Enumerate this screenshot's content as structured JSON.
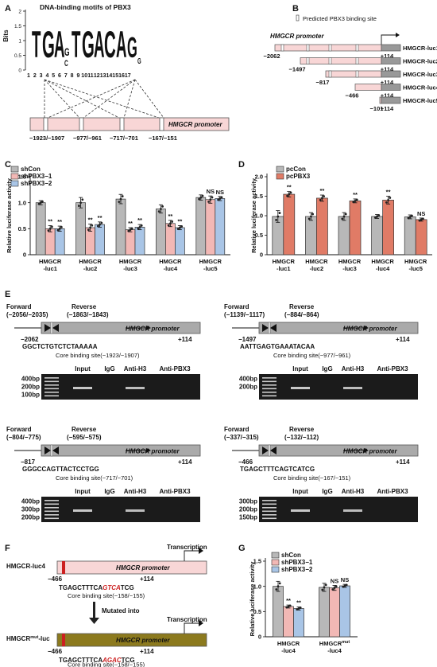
{
  "panel_a": {
    "letter": "A",
    "title": "DNA-binding motifs of PBX3",
    "ylabel": "Bits",
    "yticks": [
      "0",
      "0.5",
      "1",
      "1.5",
      "2"
    ],
    "positions": [
      "1",
      "2",
      "3",
      "4",
      "5",
      "6",
      "7",
      "8",
      "9",
      "10",
      "11",
      "12",
      "13",
      "14",
      "15",
      "16",
      "17"
    ],
    "promoter_label": "HMGCR promoter",
    "site_labels": [
      "−1923/−1907",
      "−977/−961",
      "−717/−701",
      "−167/−151"
    ]
  },
  "panel_b": {
    "letter": "B",
    "legend": "Predicted PBX3 binding site",
    "promoter_label": "HMGCR promoter",
    "constructs": [
      {
        "name": "HMGCR-luc1",
        "start": "−2062",
        "end": "+114"
      },
      {
        "name": "HMGCR-luc2",
        "start": "−1497",
        "end": "+114"
      },
      {
        "name": "HMGCR-luc3",
        "start": "−817",
        "end": "+114"
      },
      {
        "name": "HMGCR-luc4",
        "start": "−466",
        "end": "+114"
      },
      {
        "name": "HMGCR-luc5",
        "start": "−101",
        "end": "+114"
      }
    ]
  },
  "chart_data": [
    {
      "panel": "C",
      "type": "bar",
      "ylabel": "Relative luciferase activity",
      "ylim": [
        0,
        1.5
      ],
      "yticks": [
        "0",
        "0.5",
        "1.0",
        "1.5"
      ],
      "categories": [
        "HMGCR-luc1",
        "HMGCR-luc2",
        "HMGCR-luc3",
        "HMGCR-luc4",
        "HMGCR-luc5"
      ],
      "series": [
        {
          "name": "shCon",
          "color": "#b8b8b8",
          "values": [
            1.0,
            1.0,
            1.07,
            0.88,
            1.1
          ],
          "errors": [
            0.04,
            0.1,
            0.09,
            0.08,
            0.05
          ]
        },
        {
          "name": "shPBX3−1",
          "color": "#f2b8b5",
          "values": [
            0.5,
            0.52,
            0.48,
            0.6,
            1.06
          ],
          "errors": [
            0.06,
            0.07,
            0.04,
            0.06,
            0.07
          ]
        },
        {
          "name": "shPBX3−2",
          "color": "#a9c5e6",
          "values": [
            0.5,
            0.58,
            0.53,
            0.52,
            1.08
          ],
          "errors": [
            0.05,
            0.05,
            0.05,
            0.04,
            0.04
          ]
        }
      ],
      "annotations": [
        [
          "",
          "**",
          "**"
        ],
        [
          "",
          "**",
          "**"
        ],
        [
          "",
          "**",
          "**"
        ],
        [
          "",
          "**",
          "**"
        ],
        [
          "",
          "NS",
          "NS"
        ]
      ],
      "legend_placement": "top-left"
    },
    {
      "panel": "D",
      "type": "bar",
      "ylabel": "Relative luciferase activity",
      "ylim": [
        0,
        2.0
      ],
      "yticks": [
        "0",
        "0.5",
        "1.0",
        "1.5",
        "2.0"
      ],
      "categories": [
        "HMGCR-luc1",
        "HMGCR-luc2",
        "HMGCR-luc3",
        "HMGCR-luc4",
        "HMGCR-luc5"
      ],
      "series": [
        {
          "name": "pcCon",
          "color": "#b8b8b8",
          "values": [
            0.98,
            0.98,
            0.98,
            0.98,
            0.97
          ],
          "errors": [
            0.15,
            0.1,
            0.1,
            0.05,
            0.05
          ]
        },
        {
          "name": "pcPBX3",
          "color": "#e07b66",
          "values": [
            1.55,
            1.45,
            1.38,
            1.4,
            0.9
          ],
          "errors": [
            0.07,
            0.08,
            0.05,
            0.1,
            0.04
          ]
        }
      ],
      "annotations": [
        [
          "",
          "**"
        ],
        [
          "",
          "**"
        ],
        [
          "",
          "**"
        ],
        [
          "",
          "**"
        ],
        [
          "",
          "NS"
        ]
      ],
      "legend_placement": "top-left"
    },
    {
      "panel": "G",
      "type": "bar",
      "ylabel": "Relative luciferase activity",
      "ylim": [
        0,
        1.5
      ],
      "yticks": [
        "0",
        "0.5",
        "1.0",
        "1.5"
      ],
      "categories": [
        "HMGCR-luc4",
        "HMGCR-mut-luc4"
      ],
      "series": [
        {
          "name": "shCon",
          "color": "#b8b8b8",
          "values": [
            1.0,
            0.98
          ],
          "errors": [
            0.1,
            0.08
          ]
        },
        {
          "name": "shPBX3−1",
          "color": "#f2b8b5",
          "values": [
            0.6,
            0.97
          ],
          "errors": [
            0.03,
            0.05
          ]
        },
        {
          "name": "shPBX3−2",
          "color": "#a9c5e6",
          "values": [
            0.56,
            1.01
          ],
          "errors": [
            0.03,
            0.03
          ]
        }
      ],
      "annotations": [
        [
          "",
          "**",
          "**"
        ],
        [
          "",
          "NS",
          "NS"
        ]
      ],
      "legend_placement": "top-left"
    }
  ],
  "panel_e": {
    "letter": "E",
    "subpanels": [
      {
        "fwd": "Forward",
        "fwd_pos": "(−2056/−2035)",
        "rev": "Reverse",
        "rev_pos": "(−1863/−1843)",
        "start": "−2062",
        "end": "+114",
        "seq": "GGCTCTGTCTCTAAAAA",
        "core": "Core binding site(−1923/−1907)",
        "ladder": [
          "400bp",
          "200bp",
          "100bp"
        ],
        "lanes": [
          "Input",
          "IgG",
          "Anti-H3",
          "Anti-PBX3"
        ],
        "promoter": "HMGCR promoter"
      },
      {
        "fwd": "Forward",
        "fwd_pos": "(−1139/−1117)",
        "rev": "Reverse",
        "rev_pos": "(−884/−864)",
        "start": "−1497",
        "end": "+114",
        "seq": "AATTGAGTGAAATACAA",
        "core": "Core binding site(−977/−961)",
        "ladder": [
          "400bp",
          "200bp"
        ],
        "lanes": [
          "Input",
          "IgG",
          "Anti-H3",
          "Anti-PBX3"
        ],
        "promoter": "HMGCR promoter"
      },
      {
        "fwd": "Forward",
        "fwd_pos": "(−804/−775)",
        "rev": "Reverse",
        "rev_pos": "(−595/−575)",
        "start": "−817",
        "end": "+114",
        "seq": "GGGCCAGTTACTCCTGG",
        "core": "Core binding site(−717/−701)",
        "ladder": [
          "400bp",
          "300bp",
          "200bp"
        ],
        "lanes": [
          "Input",
          "IgG",
          "Anti-H3",
          "Anti-PBX3"
        ],
        "promoter": "HMGCR promoter"
      },
      {
        "fwd": "Forward",
        "fwd_pos": "(−337/−315)",
        "rev": "Reverse",
        "rev_pos": "(−132/−112)",
        "start": "−466",
        "end": "+114",
        "seq": "TGAGCTTTCAGTCATCG",
        "core": "Core binding site(−167/−151)",
        "ladder": [
          "300bp",
          "200bp",
          "150bp"
        ],
        "lanes": [
          "Input",
          "IgG",
          "Anti-H3",
          "Anti-PBX3"
        ],
        "promoter": "HMGCR promoter"
      }
    ]
  },
  "panel_f": {
    "letter": "F",
    "wt_name": "HMGCR-luc4",
    "mut_name": "HMGCR",
    "mut_sup": "mut",
    "mut_suffix": "-luc",
    "promoter": "HMGCR promoter",
    "transcription": "Transcription",
    "start": "−466",
    "end": "+114",
    "wt_seq_pre": "TGAGCTTTCA",
    "wt_seq_site": "GTCA",
    "wt_seq_post": "TCG",
    "mut_seq_pre": "TGAGCTTTCA",
    "mut_seq_site": "AGAC",
    "mut_seq_post": "TCG",
    "core": "Core binding site(−158/−155)",
    "mutated": "Mutated into",
    "highlight_color": "#cc1f1f",
    "wt_box_color": "#f8d6d6",
    "mut_box_color": "#8c7a1e"
  },
  "panel_g": {
    "letter": "G",
    "cat_labels": [
      {
        "l1": "HMGCR",
        "l2": "-luc4",
        "sup": ""
      },
      {
        "l1": "HMGCR",
        "l2": "-luc4",
        "sup": "mut"
      }
    ]
  },
  "panel_letters": {
    "c": "C",
    "d": "D"
  }
}
